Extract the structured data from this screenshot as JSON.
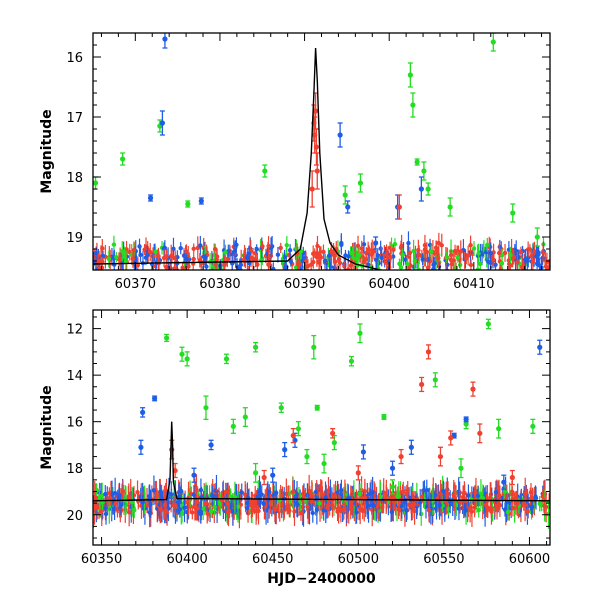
{
  "chart_data": [
    {
      "type": "scatter",
      "ylabel": "Magnitude",
      "xlabel": "",
      "xlim": [
        60365,
        60419
      ],
      "ylim": [
        19.55,
        15.6
      ],
      "y_inverted": true,
      "xticks": [
        60370,
        60380,
        60390,
        60400,
        60410
      ],
      "yticks": [
        16,
        17,
        18,
        19
      ],
      "series": [
        {
          "color": "#22dd22",
          "marker": "dot-with-errorbar",
          "points": [
            [
              60365.3,
              18.1,
              0.1
            ],
            [
              60368.5,
              17.7,
              0.1
            ],
            [
              60372.9,
              17.15,
              0.1
            ],
            [
              60376.2,
              18.45,
              0.05
            ],
            [
              60385.3,
              17.9,
              0.1
            ],
            [
              60394.8,
              18.3,
              0.15
            ],
            [
              60396.6,
              18.1,
              0.15
            ],
            [
              60402.5,
              16.3,
              0.2
            ],
            [
              60402.8,
              16.8,
              0.2
            ],
            [
              60403.3,
              17.75,
              0.05
            ],
            [
              60404.1,
              17.9,
              0.15
            ],
            [
              60404.6,
              18.2,
              0.1
            ],
            [
              60407.2,
              18.5,
              0.15
            ],
            [
              60412.3,
              15.75,
              0.15
            ],
            [
              60414.6,
              18.6,
              0.15
            ],
            [
              60417.5,
              19.0,
              0.15
            ]
          ]
        },
        {
          "color": "#1f5de6",
          "marker": "dot-with-errorbar",
          "points": [
            [
              60373.2,
              17.1,
              0.2
            ],
            [
              60373.5,
              15.7,
              0.15
            ],
            [
              60371.8,
              18.35,
              0.05
            ],
            [
              60377.8,
              18.4,
              0.05
            ],
            [
              60394.2,
              17.3,
              0.2
            ],
            [
              60395.1,
              18.5,
              0.1
            ],
            [
              60398.4,
              19.1,
              0.1
            ],
            [
              60401.0,
              18.5,
              0.2
            ],
            [
              60403.8,
              18.2,
              0.2
            ]
          ]
        },
        {
          "color": "#f04030",
          "marker": "dot-with-errorbar",
          "points": [
            [
              60391.2,
              17.3,
              0.3
            ],
            [
              60391.3,
              16.9,
              0.3
            ],
            [
              60391.1,
              17.1,
              0.3
            ],
            [
              60391.4,
              17.5,
              0.3
            ],
            [
              60391.5,
              17.9,
              0.3
            ],
            [
              60390.9,
              18.2,
              0.3
            ],
            [
              60401.2,
              18.5,
              0.2
            ]
          ]
        }
      ],
      "model_curve": {
        "color": "#000000",
        "x": [
          60365,
          60388,
          60389.5,
          60390.3,
          60390.8,
          60391.1,
          60391.3,
          60391.5,
          60391.8,
          60392.3,
          60393.0,
          60394.0,
          60396.0,
          60399.0,
          60402.0,
          60419.0
        ],
        "y": [
          19.45,
          19.4,
          19.2,
          18.6,
          17.6,
          16.6,
          15.85,
          16.4,
          17.6,
          18.7,
          19.1,
          19.3,
          19.45,
          19.55,
          19.6,
          19.65
        ]
      },
      "baseline_magnitude": 19.35
    },
    {
      "type": "scatter",
      "ylabel": "Magnitude",
      "xlabel": "HJD−2400000",
      "xlim": [
        60345,
        60612
      ],
      "ylim": [
        21.3,
        11.2
      ],
      "y_inverted": true,
      "xticks": [
        60350,
        60400,
        60450,
        60500,
        60550,
        60600
      ],
      "yticks": [
        12,
        14,
        16,
        18,
        20
      ],
      "series": [
        {
          "color": "#22dd22",
          "marker": "dot-with-errorbar",
          "points": [
            [
              60388,
              12.4,
              0.15
            ],
            [
              60397,
              13.1,
              0.3
            ],
            [
              60400,
              13.3,
              0.3
            ],
            [
              60411,
              15.4,
              0.5
            ],
            [
              60423,
              13.3,
              0.2
            ],
            [
              60427,
              16.2,
              0.3
            ],
            [
              60434,
              15.8,
              0.4
            ],
            [
              60440,
              12.8,
              0.2
            ],
            [
              60455,
              15.4,
              0.2
            ],
            [
              60465,
              16.3,
              0.3
            ],
            [
              60474,
              12.8,
              0.5
            ],
            [
              60476,
              15.4,
              0.1
            ],
            [
              60486,
              16.9,
              0.3
            ],
            [
              60496,
              13.4,
              0.2
            ],
            [
              60501,
              12.2,
              0.4
            ],
            [
              60515,
              15.8,
              0.1
            ],
            [
              60545,
              14.2,
              0.3
            ],
            [
              60563,
              16.1,
              0.2
            ],
            [
              60576,
              11.8,
              0.2
            ],
            [
              60582,
              16.3,
              0.4
            ],
            [
              60602,
              16.2,
              0.3
            ],
            [
              60440,
              18.2,
              0.4
            ],
            [
              60470,
              17.5,
              0.3
            ],
            [
              60520,
              18.8,
              0.3
            ],
            [
              60560,
              18.0,
              0.4
            ],
            [
              60480,
              17.8,
              0.4
            ]
          ]
        },
        {
          "color": "#1f5de6",
          "marker": "dot-with-errorbar",
          "points": [
            [
              60374,
              15.6,
              0.2
            ],
            [
              60373,
              17.1,
              0.3
            ],
            [
              60381,
              15.0,
              0.1
            ],
            [
              60414,
              17.0,
              0.2
            ],
            [
              60457,
              17.2,
              0.3
            ],
            [
              60463,
              16.8,
              0.3
            ],
            [
              60503,
              17.3,
              0.3
            ],
            [
              60531,
              17.1,
              0.3
            ],
            [
              60556,
              16.6,
              0.1
            ],
            [
              60563,
              15.9,
              0.1
            ],
            [
              60606,
              12.8,
              0.3
            ],
            [
              60404,
              18.3,
              0.3
            ],
            [
              60450,
              18.3,
              0.3
            ],
            [
              60520,
              18.0,
              0.3
            ],
            [
              60585,
              18.6,
              0.3
            ]
          ]
        },
        {
          "color": "#f04030",
          "marker": "dot-with-errorbar",
          "points": [
            [
              60391,
              17.2,
              0.4
            ],
            [
              60393,
              18.1,
              0.3
            ],
            [
              60462,
              16.6,
              0.3
            ],
            [
              60485,
              16.5,
              0.2
            ],
            [
              60537,
              14.4,
              0.3
            ],
            [
              60541,
              13.0,
              0.3
            ],
            [
              60548,
              17.5,
              0.4
            ],
            [
              60554,
              16.7,
              0.3
            ],
            [
              60567,
              14.6,
              0.3
            ],
            [
              60571,
              16.5,
              0.4
            ],
            [
              60500,
              18.2,
              0.3
            ],
            [
              60525,
              17.5,
              0.3
            ],
            [
              60445,
              18.4,
              0.3
            ],
            [
              60590,
              18.4,
              0.3
            ]
          ]
        }
      ],
      "model_curve": {
        "color": "#000000",
        "x": [
          60345,
          60388,
          60390,
          60391,
          60391.5,
          60392,
          60394,
          60612
        ],
        "y": [
          19.4,
          19.35,
          18.5,
          16.0,
          17.0,
          18.6,
          19.3,
          19.4
        ]
      },
      "baseline_magnitude": 19.45
    }
  ]
}
